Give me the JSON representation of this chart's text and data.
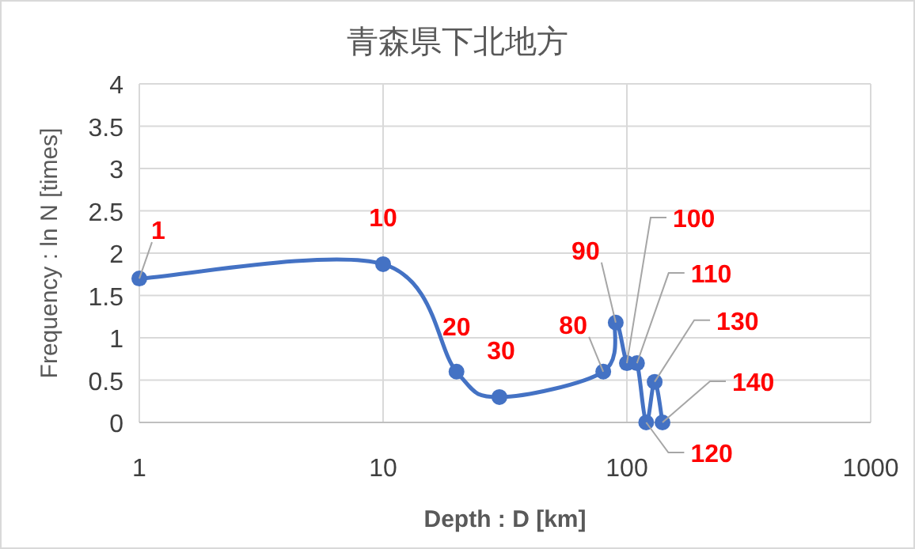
{
  "chart_data": {
    "type": "line",
    "title": "青森県下北地方",
    "xlabel": "Depth : D [km]",
    "ylabel": "Frequency : ln N [times]",
    "log": "x",
    "x": [
      1,
      10,
      20,
      30,
      80,
      90,
      100,
      110,
      120,
      130,
      140
    ],
    "series": [
      {
        "color": "#4472c4",
        "values": [
          1.7,
          1.87,
          0.6,
          0.3,
          0.6,
          1.18,
          0.7,
          0.7,
          0,
          0.48,
          0
        ]
      }
    ],
    "xlim": [
      1,
      1000
    ],
    "xticks": [
      1,
      10,
      100,
      1000
    ],
    "ylim": [
      0,
      4
    ],
    "yticks": [
      0,
      0.5,
      1,
      1.5,
      2,
      2.5,
      3,
      3.5,
      4
    ],
    "grid": true,
    "marker": "circle",
    "line_style": "solid",
    "annotations": [
      {
        "text": "1",
        "x": 1,
        "y": 1.7
      },
      {
        "text": "10",
        "x": 10,
        "y": 1.87
      },
      {
        "text": "20",
        "x": 20,
        "y": 0.6
      },
      {
        "text": "30",
        "x": 30,
        "y": 0.3
      },
      {
        "text": "80",
        "x": 80,
        "y": 0.6
      },
      {
        "text": "90",
        "x": 90,
        "y": 1.18
      },
      {
        "text": "100",
        "x": 100,
        "y": 0.7
      },
      {
        "text": "110",
        "x": 110,
        "y": 0.7
      },
      {
        "text": "120",
        "x": 120,
        "y": 0
      },
      {
        "text": "130",
        "x": 130,
        "y": 0.48
      },
      {
        "text": "140",
        "x": 140,
        "y": 0
      }
    ]
  }
}
